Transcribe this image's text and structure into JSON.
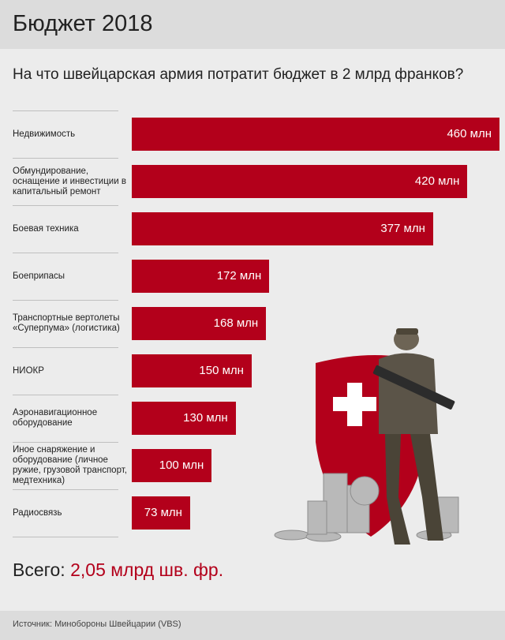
{
  "header": {
    "title": "Бюджет 2018"
  },
  "subtitle": "На что швейцарская армия потратит бюджет в 2 млрд франков?",
  "chart_data": {
    "type": "bar",
    "orientation": "horizontal",
    "unit": "млн",
    "categories": [
      "Недвижимость",
      "Обмундирование, оснащение и инвестиции в капитальный ремонт",
      "Боевая техника",
      "Боеприпасы",
      "Транспортные вертолеты «Суперпума» (логистика)",
      "НИОКР",
      "Аэронавигационное оборудование",
      "Иное снаряжение и оборудование (личное ружие, грузовой транспорт, медтехника)",
      "Радиосвязь"
    ],
    "values": [
      460,
      420,
      377,
      172,
      168,
      150,
      130,
      100,
      73
    ],
    "value_labels": [
      "460 млн",
      "420 млн",
      "377 млн",
      "172 млн",
      "168 млн",
      "150 млн",
      "130 млн",
      "100 млн",
      "73 млн"
    ],
    "bar_color": "#b3001b"
  },
  "total": {
    "label": "Всего:",
    "value": "2,05 млрд шв. фр."
  },
  "source": "Источник: Минобороны Швейцарии (VBS)",
  "colors": {
    "accent": "#b3001b",
    "background": "#ececec",
    "header": "#dcdcdc"
  },
  "illustration": {
    "icon": "swiss-soldier-with-shield-and-coins-illustration"
  }
}
